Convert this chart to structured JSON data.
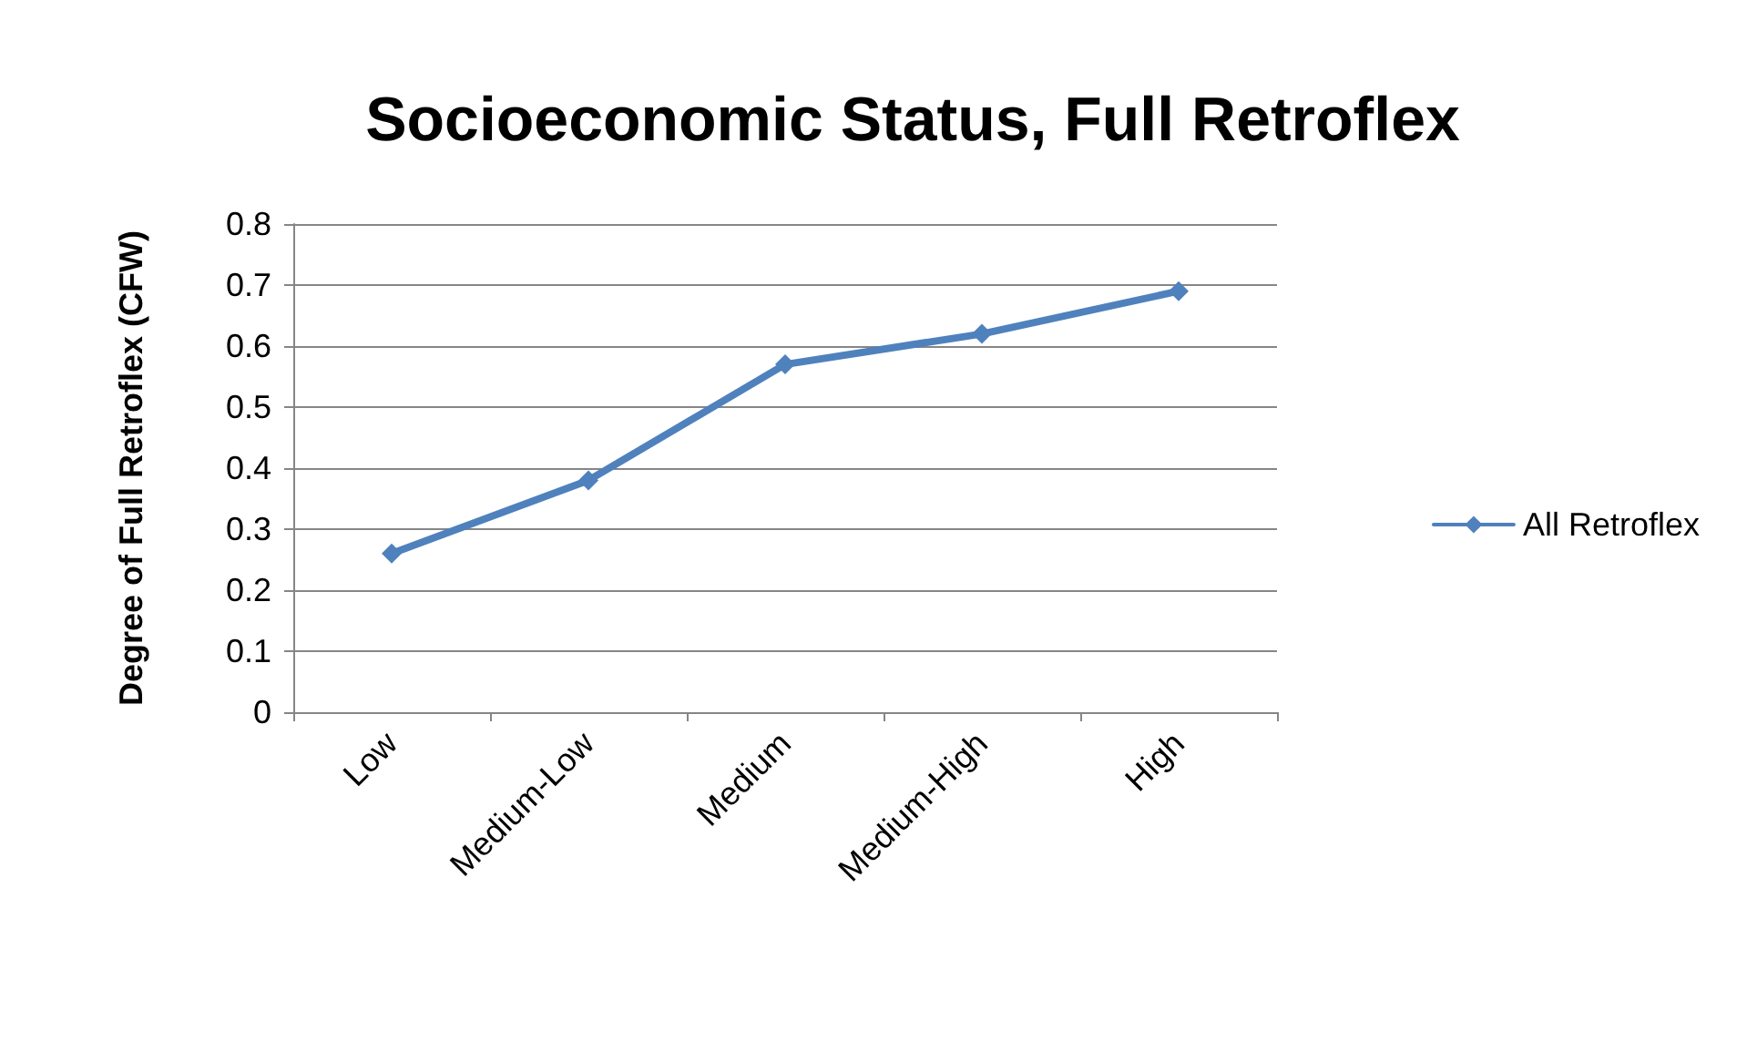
{
  "chart_data": {
    "type": "line",
    "title": "Socioeconomic Status, Full Retroflex",
    "ylabel": "Degree of Full Retroflex (CFW)",
    "categories": [
      "Low",
      "Medium-Low",
      "Medium",
      "Medium-High",
      "High"
    ],
    "series": [
      {
        "name": "All Retroflex",
        "color": "#4f81bd",
        "values": [
          0.26,
          0.38,
          0.57,
          0.62,
          0.69
        ]
      }
    ],
    "ylim": [
      0,
      0.8
    ],
    "yticks": [
      0,
      0.1,
      0.2,
      0.3,
      0.4,
      0.5,
      0.6,
      0.7,
      0.8
    ],
    "grid": "y",
    "legend": "right",
    "marker": "diamond",
    "line_style": "solid"
  }
}
